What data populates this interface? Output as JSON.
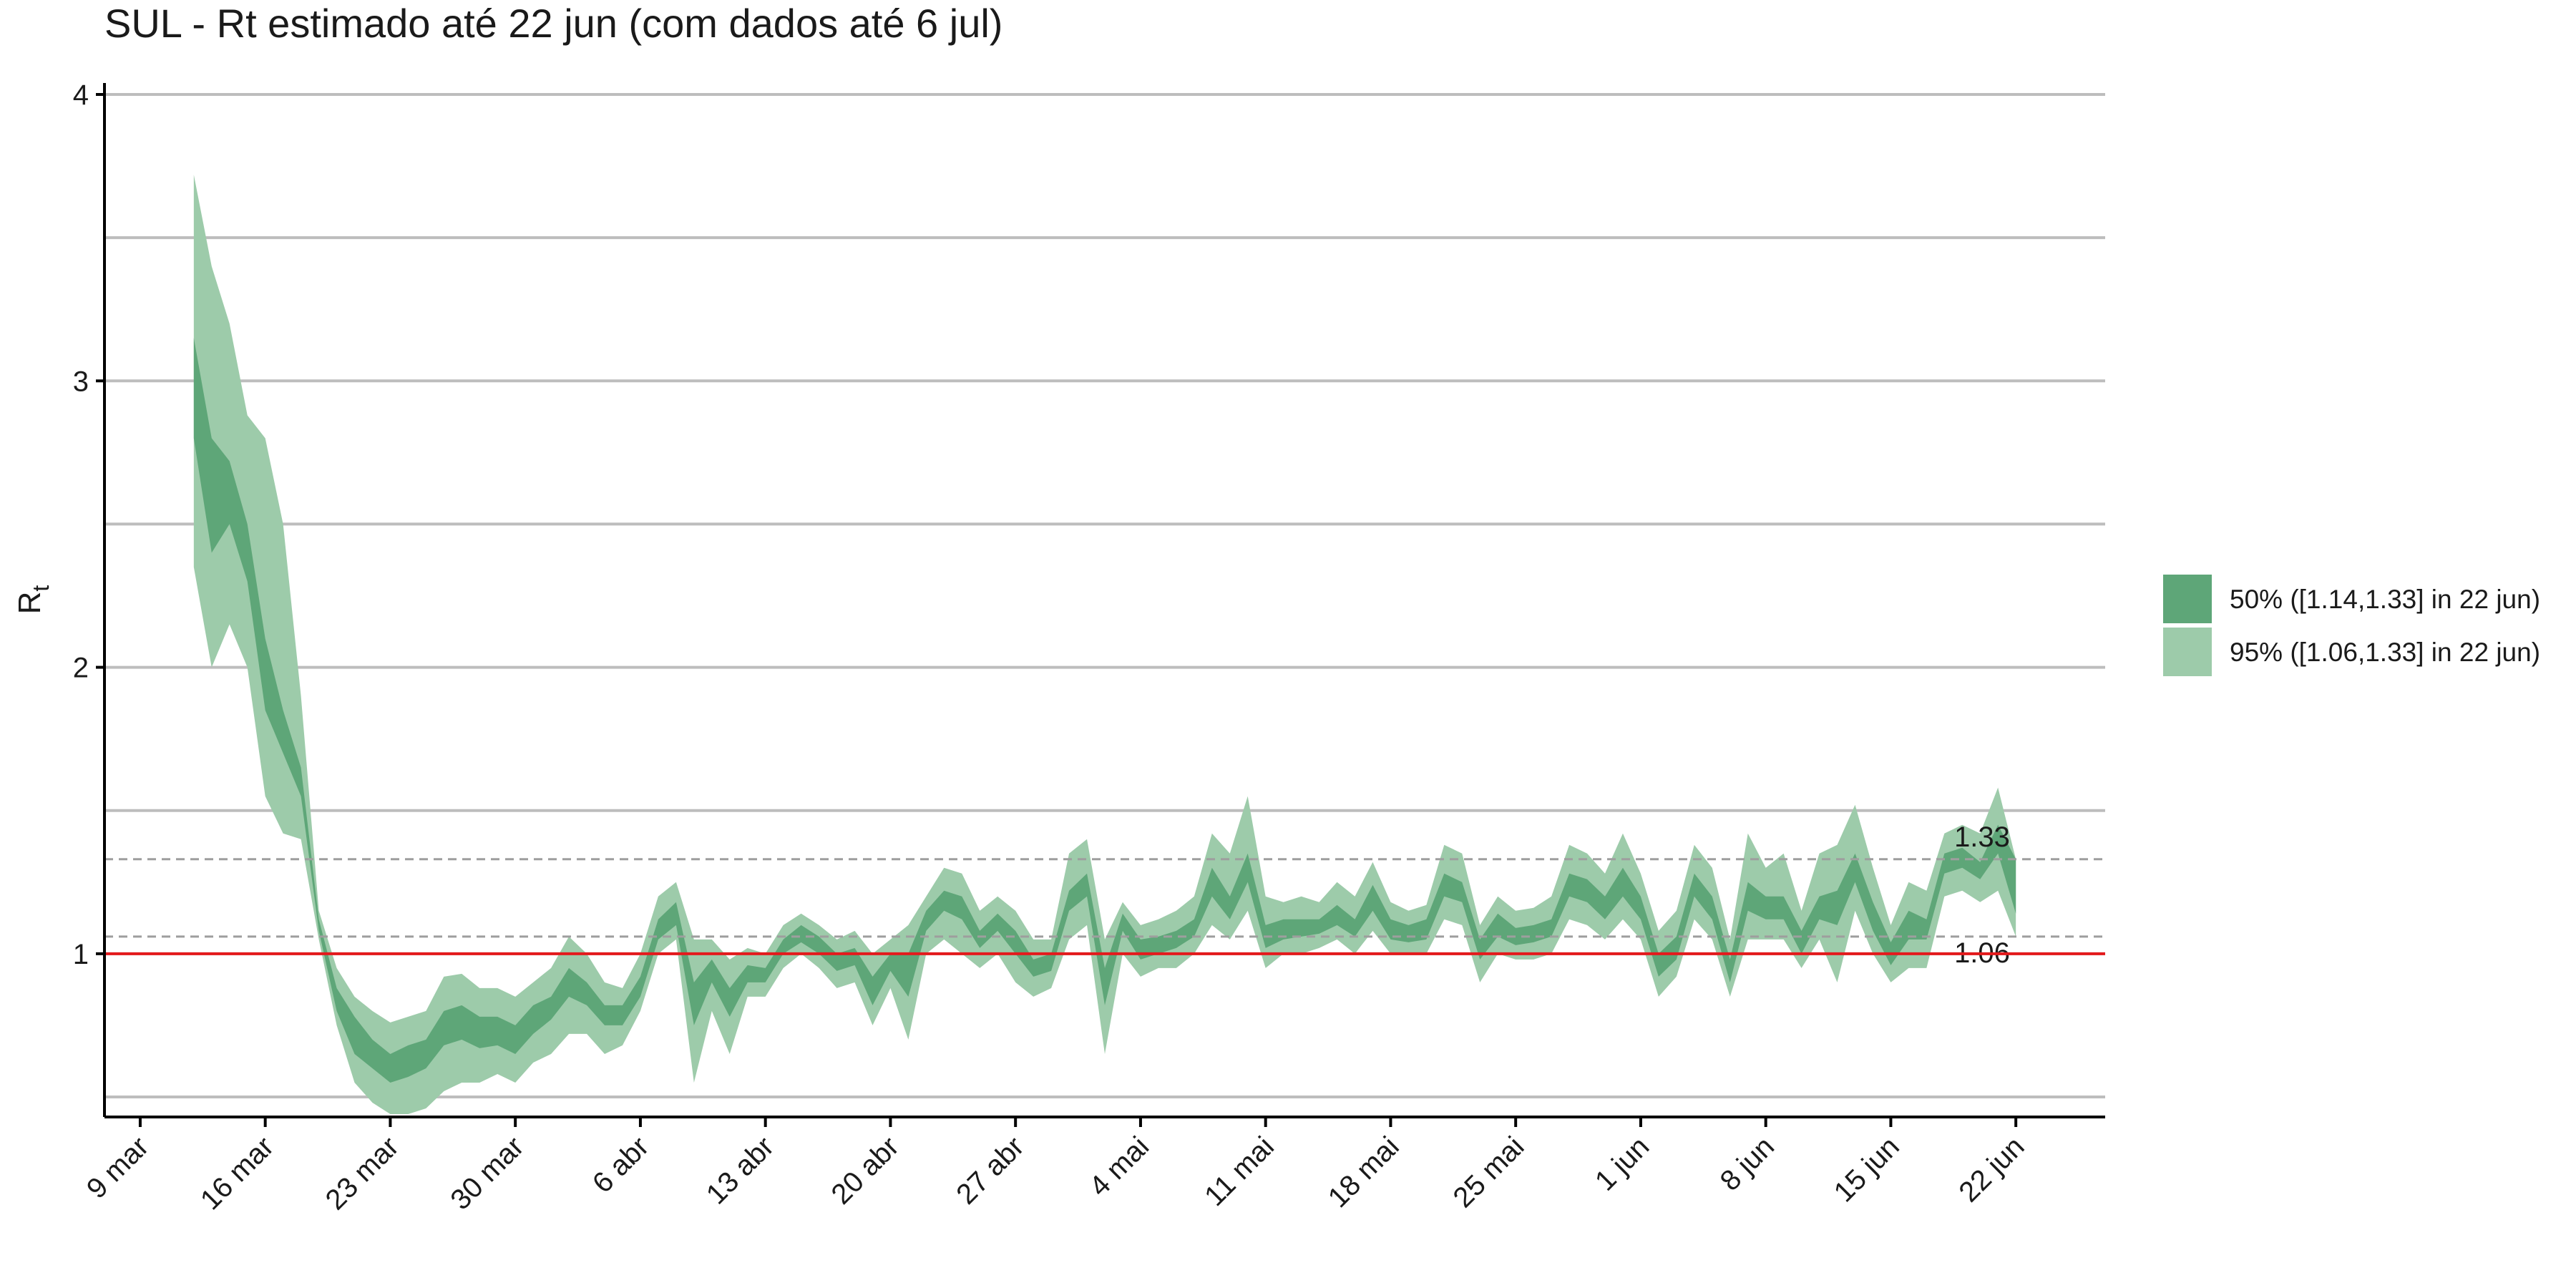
{
  "chart_data": {
    "type": "band",
    "title": "SUL - Rt estimado até 22 jun (com dados até 6 jul)",
    "ylabel": {
      "main": "R",
      "sub": "t"
    },
    "x": [
      3,
      4,
      5,
      6,
      7,
      8,
      9,
      10,
      11,
      12,
      13,
      14,
      15,
      16,
      17,
      18,
      19,
      20,
      21,
      22,
      23,
      24,
      25,
      26,
      27,
      28,
      29,
      30,
      31,
      32,
      33,
      34,
      35,
      36,
      37,
      38,
      39,
      40,
      41,
      42,
      43,
      44,
      45,
      46,
      47,
      48,
      49,
      50,
      51,
      52,
      53,
      54,
      55,
      56,
      57,
      58,
      59,
      60,
      61,
      62,
      63,
      64,
      65,
      66,
      67,
      68,
      69,
      70,
      71,
      72,
      73,
      74,
      75,
      76,
      77,
      78,
      79,
      80,
      81,
      82,
      83,
      84,
      85,
      86,
      87,
      88,
      89,
      90,
      91,
      92,
      93,
      94,
      95,
      96,
      97,
      98,
      99,
      100,
      101,
      102,
      103,
      104,
      105
    ],
    "xlim": [
      -2,
      110
    ],
    "xticks": [
      {
        "value": 0,
        "label": "9 mar"
      },
      {
        "value": 7,
        "label": "16 mar"
      },
      {
        "value": 14,
        "label": "23 mar"
      },
      {
        "value": 21,
        "label": "30 mar"
      },
      {
        "value": 28,
        "label": "6 abr"
      },
      {
        "value": 35,
        "label": "13 abr"
      },
      {
        "value": 42,
        "label": "20 abr"
      },
      {
        "value": 49,
        "label": "27 abr"
      },
      {
        "value": 56,
        "label": "4 mai"
      },
      {
        "value": 63,
        "label": "11 mai"
      },
      {
        "value": 70,
        "label": "18 mai"
      },
      {
        "value": 77,
        "label": "25 mai"
      },
      {
        "value": 84,
        "label": "1 jun"
      },
      {
        "value": 91,
        "label": "8 jun"
      },
      {
        "value": 98,
        "label": "15 jun"
      },
      {
        "value": 105,
        "label": "22 jun"
      }
    ],
    "ylim": [
      0.43,
      4.04
    ],
    "yticks": [
      1,
      2,
      3,
      4
    ],
    "ygrid": [
      0.5,
      1,
      1.5,
      2,
      2.5,
      3,
      3.5,
      4
    ],
    "reference_line": {
      "value": 1,
      "color": "#e41a1c"
    },
    "dashed_lines": [
      1.33,
      1.06
    ],
    "series": [
      {
        "name": "50% ([1.14,1.33] in 22 jun)",
        "color": "#5ea678",
        "lower": [
          2.8,
          2.4,
          2.5,
          2.3,
          1.85,
          1.7,
          1.55,
          1.08,
          0.8,
          0.65,
          0.6,
          0.55,
          0.57,
          0.6,
          0.68,
          0.7,
          0.67,
          0.68,
          0.65,
          0.72,
          0.77,
          0.85,
          0.82,
          0.75,
          0.75,
          0.85,
          1.05,
          1.1,
          0.75,
          0.9,
          0.78,
          0.9,
          0.9,
          1.0,
          1.04,
          1.0,
          0.94,
          0.96,
          0.82,
          0.94,
          0.85,
          1.08,
          1.15,
          1.12,
          1.02,
          1.08,
          1.0,
          0.92,
          0.94,
          1.15,
          1.2,
          0.82,
          1.08,
          0.98,
          1.0,
          1.02,
          1.06,
          1.2,
          1.12,
          1.25,
          1.02,
          1.05,
          1.06,
          1.07,
          1.1,
          1.06,
          1.15,
          1.05,
          1.04,
          1.05,
          1.2,
          1.18,
          0.98,
          1.06,
          1.03,
          1.04,
          1.06,
          1.2,
          1.18,
          1.12,
          1.2,
          1.12,
          0.92,
          0.98,
          1.2,
          1.12,
          0.9,
          1.15,
          1.12,
          1.12,
          1.0,
          1.12,
          1.1,
          1.25,
          1.08,
          0.96,
          1.05,
          1.05,
          1.28,
          1.3,
          1.26,
          1.35,
          1.14
        ],
        "upper": [
          3.15,
          2.8,
          2.72,
          2.5,
          2.1,
          1.85,
          1.65,
          1.12,
          0.88,
          0.78,
          0.7,
          0.65,
          0.68,
          0.7,
          0.8,
          0.82,
          0.78,
          0.78,
          0.75,
          0.82,
          0.85,
          0.95,
          0.9,
          0.82,
          0.82,
          0.92,
          1.12,
          1.18,
          0.9,
          0.98,
          0.88,
          0.96,
          0.95,
          1.05,
          1.1,
          1.06,
          1.0,
          1.02,
          0.92,
          1.0,
          1.0,
          1.15,
          1.22,
          1.2,
          1.08,
          1.14,
          1.08,
          0.98,
          1.0,
          1.22,
          1.28,
          0.95,
          1.14,
          1.05,
          1.06,
          1.08,
          1.12,
          1.3,
          1.2,
          1.35,
          1.1,
          1.12,
          1.12,
          1.12,
          1.17,
          1.12,
          1.24,
          1.12,
          1.1,
          1.12,
          1.28,
          1.25,
          1.05,
          1.14,
          1.09,
          1.1,
          1.12,
          1.28,
          1.26,
          1.2,
          1.3,
          1.2,
          1.0,
          1.06,
          1.28,
          1.2,
          0.98,
          1.25,
          1.2,
          1.2,
          1.08,
          1.2,
          1.22,
          1.35,
          1.18,
          1.04,
          1.15,
          1.12,
          1.35,
          1.37,
          1.32,
          1.45,
          1.33
        ]
      },
      {
        "name": "95% ([1.06,1.33] in 22 jun)",
        "color": "#9dcbaa",
        "lower": [
          2.35,
          2.0,
          2.15,
          2.0,
          1.55,
          1.42,
          1.4,
          1.05,
          0.75,
          0.55,
          0.48,
          0.44,
          0.44,
          0.46,
          0.52,
          0.55,
          0.55,
          0.58,
          0.55,
          0.62,
          0.65,
          0.72,
          0.72,
          0.65,
          0.68,
          0.8,
          1.0,
          1.05,
          0.55,
          0.8,
          0.65,
          0.85,
          0.85,
          0.95,
          1.0,
          0.95,
          0.88,
          0.9,
          0.75,
          0.88,
          0.7,
          1.0,
          1.05,
          1.0,
          0.95,
          1.0,
          0.9,
          0.85,
          0.88,
          1.05,
          1.1,
          0.65,
          1.0,
          0.92,
          0.95,
          0.95,
          1.0,
          1.1,
          1.05,
          1.15,
          0.95,
          1.0,
          1.0,
          1.02,
          1.05,
          1.0,
          1.08,
          1.0,
          1.0,
          1.0,
          1.12,
          1.1,
          0.9,
          1.0,
          0.98,
          0.98,
          1.0,
          1.12,
          1.1,
          1.05,
          1.12,
          1.05,
          0.85,
          0.92,
          1.12,
          1.05,
          0.85,
          1.05,
          1.05,
          1.05,
          0.95,
          1.05,
          0.9,
          1.15,
          1.0,
          0.9,
          0.95,
          0.95,
          1.2,
          1.22,
          1.18,
          1.22,
          1.06
        ],
        "upper": [
          3.72,
          3.4,
          3.2,
          2.88,
          2.8,
          2.5,
          1.9,
          1.15,
          0.95,
          0.85,
          0.8,
          0.76,
          0.78,
          0.8,
          0.92,
          0.93,
          0.88,
          0.88,
          0.85,
          0.9,
          0.95,
          1.06,
          1.0,
          0.9,
          0.88,
          1.0,
          1.2,
          1.25,
          1.05,
          1.05,
          0.98,
          1.02,
          1.0,
          1.1,
          1.14,
          1.1,
          1.05,
          1.08,
          1.0,
          1.05,
          1.1,
          1.2,
          1.3,
          1.28,
          1.15,
          1.2,
          1.15,
          1.05,
          1.05,
          1.35,
          1.4,
          1.05,
          1.18,
          1.1,
          1.12,
          1.15,
          1.2,
          1.42,
          1.35,
          1.55,
          1.2,
          1.18,
          1.2,
          1.18,
          1.25,
          1.2,
          1.32,
          1.18,
          1.15,
          1.17,
          1.38,
          1.35,
          1.1,
          1.2,
          1.15,
          1.16,
          1.2,
          1.38,
          1.35,
          1.28,
          1.42,
          1.28,
          1.08,
          1.15,
          1.38,
          1.3,
          1.05,
          1.42,
          1.3,
          1.35,
          1.15,
          1.35,
          1.38,
          1.52,
          1.3,
          1.1,
          1.25,
          1.22,
          1.42,
          1.45,
          1.42,
          1.58,
          1.33
        ]
      }
    ]
  }
}
